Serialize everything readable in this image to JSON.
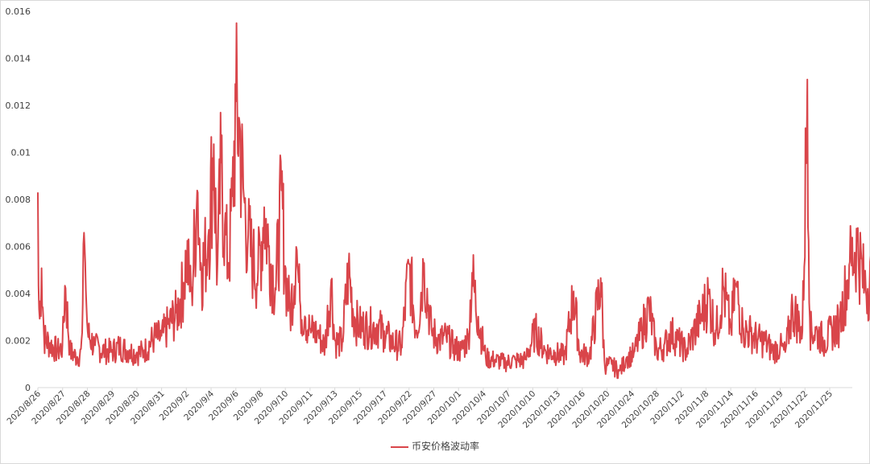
{
  "chart_data": {
    "type": "line",
    "title": "",
    "xlabel": "",
    "ylabel": "",
    "ylim": [
      0,
      0.016
    ],
    "y_ticks": [
      "0",
      "0.002",
      "0.004",
      "0.006",
      "0.008",
      "0.01",
      "0.012",
      "0.014",
      "0.016"
    ],
    "x_ticks": [
      "2020/8/26",
      "2020/8/27",
      "2020/8/28",
      "2020/8/29",
      "2020/8/30",
      "2020/8/31",
      "2020/9/2",
      "2020/9/4",
      "2020/9/6",
      "2020/9/8",
      "2020/9/10",
      "2020/9/11",
      "2020/9/13",
      "2020/9/15",
      "2020/9/17",
      "2020/9/22",
      "2020/9/27",
      "2020/10/1",
      "2020/10/4",
      "2020/10/7",
      "2020/10/10",
      "2020/10/13",
      "2020/10/16",
      "2020/10/20",
      "2020/10/24",
      "2020/10/28",
      "2020/11/2",
      "2020/11/8",
      "2020/11/14",
      "2020/11/16",
      "2020/11/19",
      "2020/11/22",
      "2020/11/25"
    ],
    "grid": false,
    "legend_position": "bottom",
    "series": [
      {
        "name": "币安价格波动率",
        "color": "#d9454a",
        "anchors": [
          [
            0,
            0.0083
          ],
          [
            0.02,
            0.0045
          ],
          [
            0.07,
            0.0028
          ],
          [
            0.15,
            0.0051
          ],
          [
            0.25,
            0.0022
          ],
          [
            0.5,
            0.0019
          ],
          [
            0.8,
            0.0016
          ],
          [
            1.0,
            0.0018
          ],
          [
            1.1,
            0.0045
          ],
          [
            1.3,
            0.0016
          ],
          [
            1.6,
            0.0013
          ],
          [
            1.78,
            0.0016
          ],
          [
            1.85,
            0.0069
          ],
          [
            1.9,
            0.0058
          ],
          [
            2.0,
            0.0024
          ],
          [
            2.3,
            0.0018
          ],
          [
            2.7,
            0.0016
          ],
          [
            3.0,
            0.0016
          ],
          [
            3.3,
            0.0018
          ],
          [
            3.7,
            0.0016
          ],
          [
            4.0,
            0.0015
          ],
          [
            4.3,
            0.0016
          ],
          [
            4.7,
            0.0022
          ],
          [
            5.0,
            0.0022
          ],
          [
            5.3,
            0.0028
          ],
          [
            5.6,
            0.0032
          ],
          [
            5.9,
            0.0045
          ],
          [
            6.0,
            0.0059
          ],
          [
            6.2,
            0.004
          ],
          [
            6.45,
            0.0086
          ],
          [
            6.6,
            0.005
          ],
          [
            6.9,
            0.0065
          ],
          [
            7.1,
            0.0107
          ],
          [
            7.25,
            0.005
          ],
          [
            7.4,
            0.0097
          ],
          [
            7.55,
            0.007
          ],
          [
            7.7,
            0.0052
          ],
          [
            7.85,
            0.008
          ],
          [
            8.0,
            0.0122
          ],
          [
            8.15,
            0.0113
          ],
          [
            8.3,
            0.0085
          ],
          [
            8.5,
            0.0065
          ],
          [
            8.7,
            0.0055
          ],
          [
            8.9,
            0.005
          ],
          [
            9.15,
            0.0077
          ],
          [
            9.35,
            0.006
          ],
          [
            9.6,
            0.0042
          ],
          [
            9.85,
            0.0085
          ],
          [
            10.0,
            0.005
          ],
          [
            10.2,
            0.0032
          ],
          [
            10.45,
            0.0061
          ],
          [
            10.6,
            0.0035
          ],
          [
            10.8,
            0.003
          ],
          [
            11.0,
            0.0025
          ],
          [
            11.3,
            0.0024
          ],
          [
            11.6,
            0.0018
          ],
          [
            11.85,
            0.0047
          ],
          [
            12.0,
            0.002
          ],
          [
            12.3,
            0.002
          ],
          [
            12.55,
            0.0051
          ],
          [
            12.8,
            0.003
          ],
          [
            13.0,
            0.0027
          ],
          [
            13.4,
            0.0026
          ],
          [
            13.7,
            0.0027
          ],
          [
            14.0,
            0.0024
          ],
          [
            14.3,
            0.002
          ],
          [
            14.7,
            0.0018
          ],
          [
            15.0,
            0.0054
          ],
          [
            15.3,
            0.0023
          ],
          [
            15.6,
            0.0054
          ],
          [
            15.9,
            0.0025
          ],
          [
            16.2,
            0.0021
          ],
          [
            16.5,
            0.0022
          ],
          [
            16.8,
            0.0018
          ],
          [
            17.1,
            0.0016
          ],
          [
            17.4,
            0.0022
          ],
          [
            17.55,
            0.0049
          ],
          [
            17.8,
            0.003
          ],
          [
            18.1,
            0.0013
          ],
          [
            18.5,
            0.0012
          ],
          [
            18.9,
            0.0011
          ],
          [
            19.3,
            0.0012
          ],
          [
            19.7,
            0.0012
          ],
          [
            20.1,
            0.0025
          ],
          [
            20.5,
            0.0016
          ],
          [
            20.9,
            0.0015
          ],
          [
            21.3,
            0.0014
          ],
          [
            21.65,
            0.0041
          ],
          [
            21.9,
            0.0015
          ],
          [
            22.3,
            0.0014
          ],
          [
            22.75,
            0.0047
          ],
          [
            22.9,
            0.001
          ],
          [
            23.2,
            0.001
          ],
          [
            23.5,
            0.0007
          ],
          [
            23.8,
            0.0013
          ],
          [
            24.1,
            0.0015
          ],
          [
            24.4,
            0.0025
          ],
          [
            24.7,
            0.0035
          ],
          [
            25.0,
            0.0016
          ],
          [
            25.3,
            0.0018
          ],
          [
            25.6,
            0.0024
          ],
          [
            25.9,
            0.002
          ],
          [
            26.2,
            0.0016
          ],
          [
            26.5,
            0.0024
          ],
          [
            26.8,
            0.0031
          ],
          [
            27.1,
            0.004
          ],
          [
            27.4,
            0.0024
          ],
          [
            27.7,
            0.0044
          ],
          [
            28.0,
            0.0025
          ],
          [
            28.2,
            0.0045
          ],
          [
            28.5,
            0.0025
          ],
          [
            28.8,
            0.0024
          ],
          [
            29.1,
            0.0021
          ],
          [
            29.4,
            0.002
          ],
          [
            29.7,
            0.0016
          ],
          [
            30.0,
            0.0018
          ],
          [
            30.2,
            0.0015
          ],
          [
            30.5,
            0.0035
          ],
          [
            30.9,
            0.0024
          ],
          [
            31.1,
            0.0133
          ],
          [
            31.2,
            0.0025
          ],
          [
            31.5,
            0.0024
          ],
          [
            31.8,
            0.002
          ],
          [
            32.1,
            0.0025
          ],
          [
            32.4,
            0.0028
          ],
          [
            32.8,
            0.0053
          ],
          [
            33.1,
            0.0063
          ],
          [
            33.4,
            0.0045
          ],
          [
            33.7,
            0.0046
          ],
          [
            33.9,
            0.003
          ],
          [
            34.2,
            0.0035
          ],
          [
            34.45,
            0.0068
          ],
          [
            34.55,
            0.01
          ],
          [
            34.62,
            0.0132
          ],
          [
            34.7,
            0.006
          ],
          [
            34.8,
            0.004
          ]
        ]
      }
    ]
  }
}
